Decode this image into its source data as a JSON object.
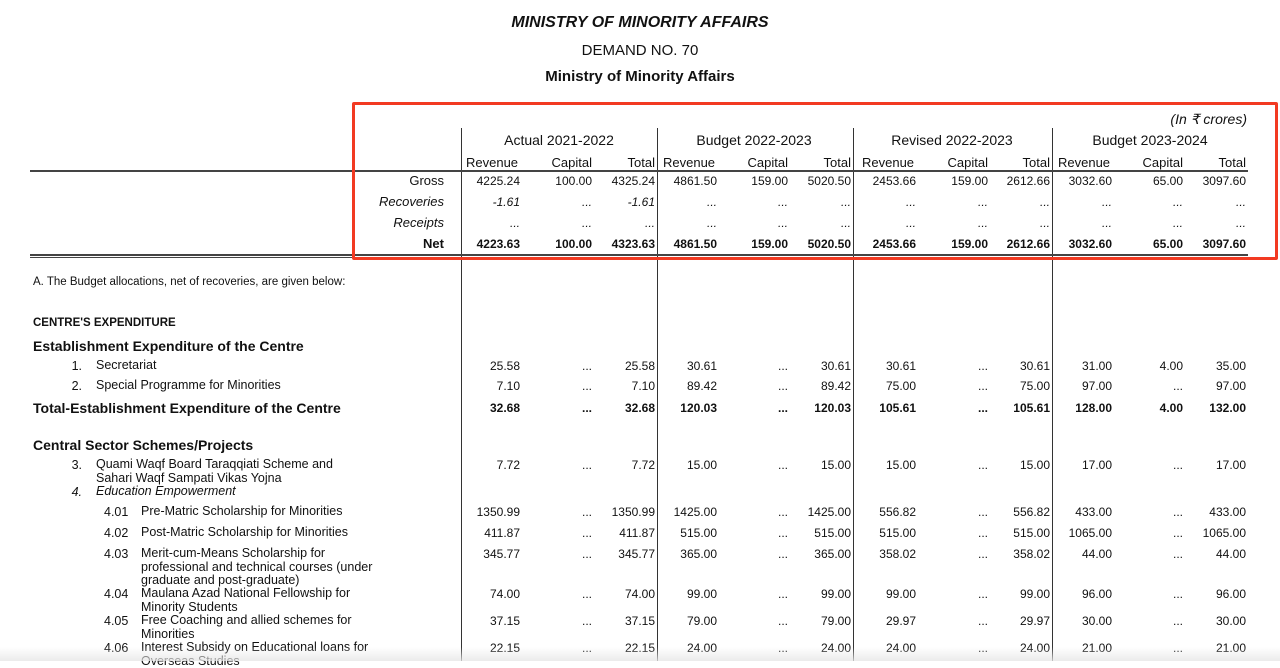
{
  "header": {
    "title": "MINISTRY OF MINORITY AFFAIRS",
    "demand": "DEMAND NO. 70",
    "ministry": "Ministry of Minority Affairs",
    "units": "(In ₹ crores)"
  },
  "column_groups": [
    "Actual 2021-2022",
    "Budget 2022-2023",
    "Revised 2022-2023",
    "Budget 2023-2024"
  ],
  "sub_columns": [
    "Revenue",
    "Capital",
    "Total"
  ],
  "summary_rows": [
    {
      "label": "Gross",
      "style": "normal",
      "values": [
        "4225.24",
        "100.00",
        "4325.24",
        "4861.50",
        "159.00",
        "5020.50",
        "2453.66",
        "159.00",
        "2612.66",
        "3032.60",
        "65.00",
        "3097.60"
      ]
    },
    {
      "label": "Recoveries",
      "style": "italic",
      "values": [
        "-1.61",
        "...",
        "-1.61",
        "...",
        "...",
        "...",
        "...",
        "...",
        "...",
        "...",
        "...",
        "..."
      ]
    },
    {
      "label": "Receipts",
      "style": "italic",
      "values": [
        "...",
        "...",
        "...",
        "...",
        "...",
        "...",
        "...",
        "...",
        "...",
        "...",
        "...",
        "..."
      ]
    },
    {
      "label": "Net",
      "style": "bold",
      "values": [
        "4223.63",
        "100.00",
        "4323.63",
        "4861.50",
        "159.00",
        "5020.50",
        "2453.66",
        "159.00",
        "2612.66",
        "3032.60",
        "65.00",
        "3097.60"
      ]
    }
  ],
  "body": {
    "note": "A. The Budget allocations, net of recoveries, are given below:",
    "section": "CENTRE'S EXPENDITURE",
    "establishment_heading": "Establishment Expenditure of the Centre",
    "central_heading": "Central Sector Schemes/Projects",
    "rows": [
      {
        "num": "1.",
        "label": "Secretariat",
        "style": "normal",
        "values": [
          "25.58",
          "...",
          "25.58",
          "30.61",
          "...",
          "30.61",
          "30.61",
          "...",
          "30.61",
          "31.00",
          "4.00",
          "35.00"
        ]
      },
      {
        "num": "2.",
        "label": "Special Programme for Minorities",
        "style": "normal",
        "values": [
          "7.10",
          "...",
          "7.10",
          "89.42",
          "...",
          "89.42",
          "75.00",
          "...",
          "75.00",
          "97.00",
          "...",
          "97.00"
        ]
      },
      {
        "num": "",
        "label": "Total-Establishment Expenditure of the Centre",
        "style": "total",
        "values": [
          "32.68",
          "...",
          "32.68",
          "120.03",
          "...",
          "120.03",
          "105.61",
          "...",
          "105.61",
          "128.00",
          "4.00",
          "132.00"
        ]
      },
      {
        "num": "3.",
        "label": "Quami Waqf Board Taraqqiati Scheme and Sahari Waqf Sampati Vikas Yojna",
        "style": "normal",
        "values": [
          "7.72",
          "...",
          "7.72",
          "15.00",
          "...",
          "15.00",
          "15.00",
          "...",
          "15.00",
          "17.00",
          "...",
          "17.00"
        ]
      },
      {
        "num": "4.",
        "label": "Education  Empowerment",
        "style": "italic",
        "values": []
      },
      {
        "num": "4.01",
        "label": "Pre-Matric Scholarship for Minorities",
        "style": "sub",
        "values": [
          "1350.99",
          "...",
          "1350.99",
          "1425.00",
          "...",
          "1425.00",
          "556.82",
          "...",
          "556.82",
          "433.00",
          "...",
          "433.00"
        ]
      },
      {
        "num": "4.02",
        "label": "Post-Matric Scholarship for Minorities",
        "style": "sub",
        "values": [
          "411.87",
          "...",
          "411.87",
          "515.00",
          "...",
          "515.00",
          "515.00",
          "...",
          "515.00",
          "1065.00",
          "...",
          "1065.00"
        ]
      },
      {
        "num": "4.03",
        "label": "Merit-cum-Means Scholarship for professional and technical courses (under graduate and post-graduate)",
        "style": "sub",
        "values": [
          "345.77",
          "...",
          "345.77",
          "365.00",
          "...",
          "365.00",
          "358.02",
          "...",
          "358.02",
          "44.00",
          "...",
          "44.00"
        ]
      },
      {
        "num": "4.04",
        "label": "Maulana Azad National Fellowship for Minority Students",
        "style": "sub",
        "values": [
          "74.00",
          "...",
          "74.00",
          "99.00",
          "...",
          "99.00",
          "99.00",
          "...",
          "99.00",
          "96.00",
          "...",
          "96.00"
        ]
      },
      {
        "num": "4.05",
        "label": "Free Coaching and allied schemes for Minorities",
        "style": "sub",
        "values": [
          "37.15",
          "...",
          "37.15",
          "79.00",
          "...",
          "79.00",
          "29.97",
          "...",
          "29.97",
          "30.00",
          "...",
          "30.00"
        ]
      },
      {
        "num": "4.06",
        "label": "Interest Subsidy on Educational loans for Overseas Studies",
        "style": "sub",
        "values": [
          "22.15",
          "...",
          "22.15",
          "24.00",
          "...",
          "24.00",
          "24.00",
          "...",
          "24.00",
          "21.00",
          "...",
          "21.00"
        ]
      }
    ]
  },
  "highlight_color": "#f23a22"
}
